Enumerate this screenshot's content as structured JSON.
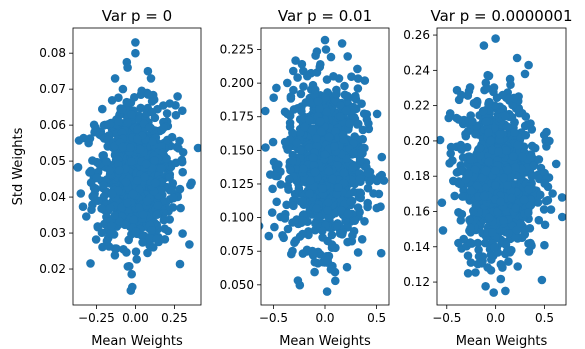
{
  "chart_data": [
    {
      "type": "scatter",
      "title": "Var p = 0",
      "xlabel": "Mean Weights",
      "ylabel": "Std Weights",
      "xlim": [
        -0.4,
        0.42
      ],
      "ylim": [
        0.01,
        0.087
      ],
      "xticks": [
        -0.25,
        0.0,
        0.25
      ],
      "xtick_labels": [
        "−0.25",
        "0.00",
        "0.25"
      ],
      "yticks": [
        0.02,
        0.03,
        0.04,
        0.05,
        0.06,
        0.07,
        0.08
      ],
      "ytick_labels": [
        "0.02",
        "0.03",
        "0.04",
        "0.05",
        "0.06",
        "0.07",
        "0.08"
      ],
      "grid": false,
      "color": "#1f77b4",
      "cloud": {
        "center": [
          0.0,
          0.046
        ],
        "x_spread": 0.33,
        "y_spread": 0.025,
        "y_range": [
          0.015,
          0.083
        ]
      },
      "outliers": [
        [
          0.0,
          0.083
        ],
        [
          0.0,
          0.08
        ],
        [
          -0.05,
          0.076
        ],
        [
          0.08,
          0.075
        ],
        [
          -0.13,
          0.073
        ],
        [
          0.1,
          0.073
        ],
        [
          0.22,
          0.066
        ],
        [
          0.27,
          0.068
        ],
        [
          0.3,
          0.064
        ],
        [
          -0.35,
          0.041
        ],
        [
          0.36,
          0.044
        ],
        [
          -0.3,
          0.055
        ],
        [
          -0.02,
          0.015
        ],
        [
          -0.03,
          0.014
        ]
      ]
    },
    {
      "type": "scatter",
      "title": "Var p = 0.01",
      "xlabel": "Mean Weights",
      "ylabel": "",
      "xlim": [
        -0.62,
        0.62
      ],
      "ylim": [
        0.035,
        0.241
      ],
      "xticks": [
        -0.5,
        0.0,
        0.5
      ],
      "xtick_labels": [
        "−0.5",
        "0.0",
        "0.5"
      ],
      "yticks": [
        0.05,
        0.075,
        0.1,
        0.125,
        0.15,
        0.175,
        0.2,
        0.225
      ],
      "ytick_labels": [
        "0.050",
        "0.075",
        "0.100",
        "0.125",
        "0.150",
        "0.175",
        "0.200",
        "0.225"
      ],
      "grid": false,
      "color": "#1f77b4",
      "cloud": {
        "center": [
          0.0,
          0.14
        ],
        "x_spread": 0.5,
        "y_spread": 0.08,
        "y_range": [
          0.045,
          0.232
        ]
      },
      "outliers": [
        [
          0.0,
          0.232
        ],
        [
          0.01,
          0.225
        ],
        [
          -0.05,
          0.212
        ],
        [
          -0.33,
          0.19
        ],
        [
          0.42,
          0.17
        ],
        [
          -0.53,
          0.132
        ],
        [
          -0.48,
          0.131
        ],
        [
          0.55,
          0.145
        ],
        [
          0.47,
          0.118
        ],
        [
          -0.4,
          0.085
        ],
        [
          0.02,
          0.045
        ],
        [
          0.1,
          0.053
        ]
      ]
    },
    {
      "type": "scatter",
      "title": "Var p = 0.0000001",
      "xlabel": "Mean Weights",
      "ylabel": "",
      "xlim": [
        -0.6,
        0.72
      ],
      "ylim": [
        0.107,
        0.264
      ],
      "xticks": [
        -0.5,
        0.0,
        0.5
      ],
      "xtick_labels": [
        "−0.5",
        "0.0",
        "0.5"
      ],
      "yticks": [
        0.12,
        0.14,
        0.16,
        0.18,
        0.2,
        0.22,
        0.24,
        0.26
      ],
      "ytick_labels": [
        "0.12",
        "0.14",
        "0.16",
        "0.18",
        "0.20",
        "0.22",
        "0.24",
        "0.26"
      ],
      "grid": false,
      "color": "#1f77b4",
      "cloud": {
        "center": [
          0.02,
          0.18
        ],
        "x_spread": 0.52,
        "y_spread": 0.06,
        "y_range": [
          0.114,
          0.258
        ]
      },
      "outliers": [
        [
          0.0,
          0.258
        ],
        [
          -0.12,
          0.254
        ],
        [
          0.22,
          0.247
        ],
        [
          0.3,
          0.238
        ],
        [
          -0.35,
          0.226
        ],
        [
          -0.48,
          0.213
        ],
        [
          -0.4,
          0.213
        ],
        [
          0.52,
          0.205
        ],
        [
          0.55,
          0.2
        ],
        [
          0.62,
          0.187
        ],
        [
          -0.55,
          0.165
        ],
        [
          0.68,
          0.168
        ],
        [
          -0.02,
          0.114
        ],
        [
          0.1,
          0.115
        ]
      ]
    }
  ]
}
